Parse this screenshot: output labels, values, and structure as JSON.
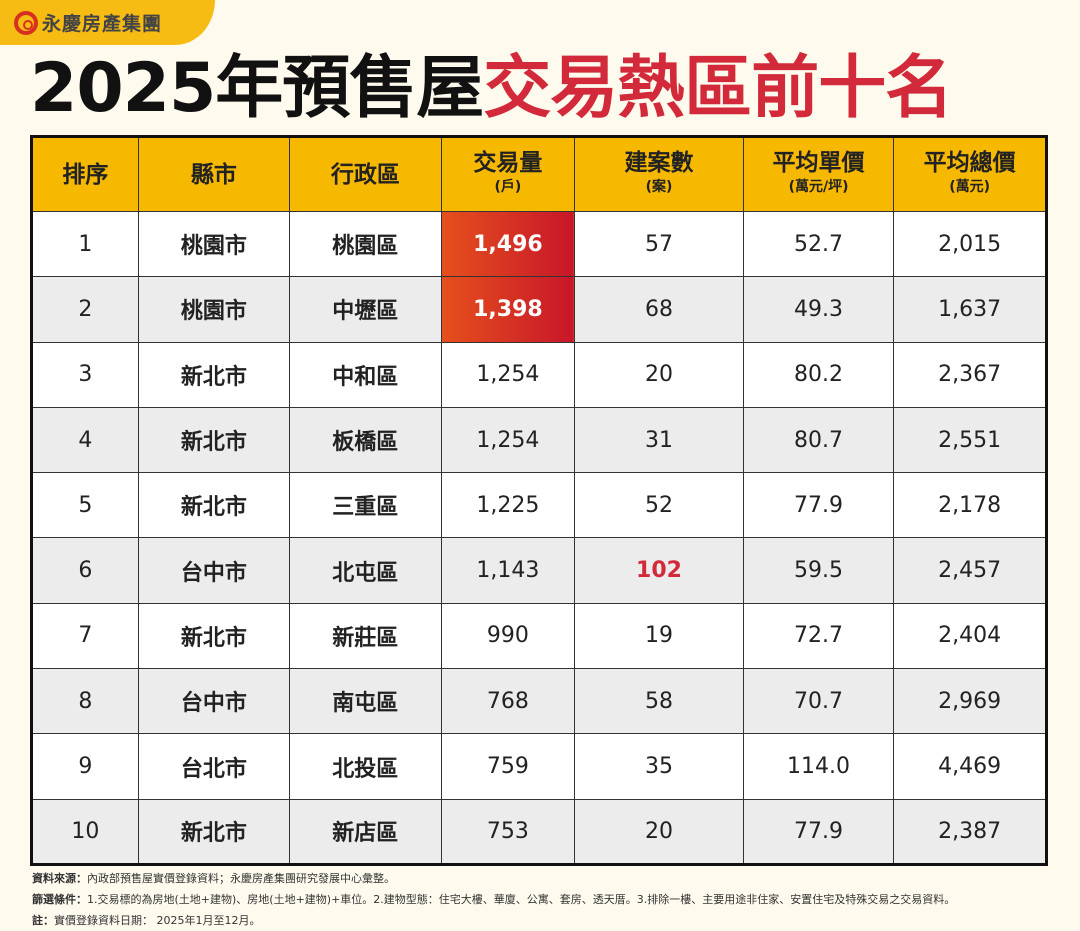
{
  "logo": {
    "text": "永慶房產集團"
  },
  "title": {
    "part1": "2025年預售屋",
    "part2": "交易熱區前十名"
  },
  "table": {
    "headers": [
      {
        "label": "排序",
        "unit": ""
      },
      {
        "label": "縣市",
        "unit": ""
      },
      {
        "label": "行政區",
        "unit": ""
      },
      {
        "label": "交易量",
        "unit": "(戶)"
      },
      {
        "label": "建案數",
        "unit": "(案)"
      },
      {
        "label": "平均單價",
        "unit": "(萬元/坪)"
      },
      {
        "label": "平均總價",
        "unit": "(萬元)"
      }
    ],
    "rows": [
      [
        "1",
        "桃園市",
        "桃園區",
        "1,496",
        "57",
        "52.7",
        "2,015"
      ],
      [
        "2",
        "桃園市",
        "中壢區",
        "1,398",
        "68",
        "49.3",
        "1,637"
      ],
      [
        "3",
        "新北市",
        "中和區",
        "1,254",
        "20",
        "80.2",
        "2,367"
      ],
      [
        "4",
        "新北市",
        "板橋區",
        "1,254",
        "31",
        "80.7",
        "2,551"
      ],
      [
        "5",
        "新北市",
        "三重區",
        "1,225",
        "52",
        "77.9",
        "2,178"
      ],
      [
        "6",
        "台中市",
        "北屯區",
        "1,143",
        "102",
        "59.5",
        "2,457"
      ],
      [
        "7",
        "新北市",
        "新莊區",
        "990",
        "19",
        "72.7",
        "2,404"
      ],
      [
        "8",
        "台中市",
        "南屯區",
        "768",
        "58",
        "70.7",
        "2,969"
      ],
      [
        "9",
        "台北市",
        "北投區",
        "759",
        "35",
        "114.0",
        "4,469"
      ],
      [
        "10",
        "新北市",
        "新店區",
        "753",
        "20",
        "77.9",
        "2,387"
      ]
    ],
    "highlight_color": "#d8302a"
  },
  "notes": [
    {
      "label": "資料來源：",
      "text": "內政部預售屋實價登錄資料；永慶房產集團研究發展中心彙整。"
    },
    {
      "label": "篩選條件：",
      "text": "1.交易標的為房地(土地+建物)、房地(土地+建物)+車位。2.建物型態：住宅大樓、華廈、公寓、套房、透天厝。3.排除一樓、主要用途非住家、安置住宅及特殊交易之交易資料。"
    },
    {
      "label": "註：",
      "text": "實價登錄資料日期： 2025年1月至12月。"
    }
  ]
}
